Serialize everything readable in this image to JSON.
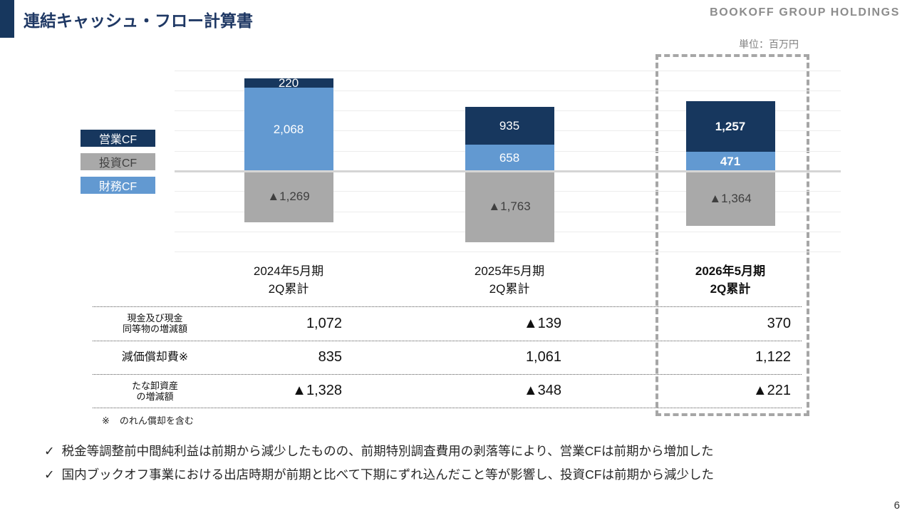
{
  "header": {
    "title": "連結キャッシュ・フロー計算書",
    "brand": "BOOKOFF GROUP HOLDINGS"
  },
  "colors": {
    "accent_navy": "#17375E",
    "operating_cf": "#17375E",
    "investing_cf": "#A9A9A9",
    "financing_cf": "#6299D1",
    "highlight_border": "#A6A6A6"
  },
  "chart_data": {
    "type": "bar",
    "stacked": true,
    "unit_label": "単位：百万円",
    "categories": [
      [
        "2024年5月期",
        "2Q累計"
      ],
      [
        "2025年5月期",
        "2Q累計"
      ],
      [
        "2026年5月期",
        "2Q累計"
      ]
    ],
    "emphasized_category_index": 2,
    "series": [
      {
        "name": "営業CF",
        "color": "#17375E",
        "label_color": "#FFFFFF",
        "emph_bold": true,
        "values": [
          220,
          935,
          1257
        ],
        "labels": [
          "220",
          "935",
          "1,257"
        ]
      },
      {
        "name": "投資CF",
        "color": "#A9A9A9",
        "label_color": "#3F3F3F",
        "emph_bold": false,
        "values": [
          -1269,
          -1763,
          -1364
        ],
        "labels": [
          "▲1,269",
          "▲1,763",
          "▲1,364"
        ]
      },
      {
        "name": "財務CF",
        "color": "#6299D1",
        "label_color": "#FFFFFF",
        "emph_bold": true,
        "values": [
          2068,
          658,
          471
        ],
        "labels": [
          "2,068",
          "658",
          "471"
        ]
      }
    ],
    "ylim": [
      -2000,
      2500
    ],
    "grid_step": 500,
    "legend_position": "left",
    "grid": true
  },
  "table": {
    "rows": [
      {
        "label_lines": [
          "現金及び現金",
          "同等物の増減額"
        ],
        "values": [
          "1,072",
          "▲139",
          "370"
        ]
      },
      {
        "label_lines": [
          "減価償却費※"
        ],
        "values": [
          "835",
          "1,061",
          "1,122"
        ]
      },
      {
        "label_lines": [
          "たな卸資産",
          "の増減額"
        ],
        "values": [
          "▲1,328",
          "▲348",
          "▲221"
        ]
      }
    ]
  },
  "footnote": {
    "marker": "※",
    "text": "のれん償却を含む"
  },
  "bullets": {
    "marker": "✓",
    "items": [
      "税金等調整前中間純利益は前期から減少したものの、前期特別調査費用の剥落等により、営業CFは前期から増加した",
      "国内ブックオフ事業における出店時期が前期と比べて下期にずれ込んだこと等が影響し、投資CFは前期から減少した"
    ]
  },
  "page_number": "6"
}
